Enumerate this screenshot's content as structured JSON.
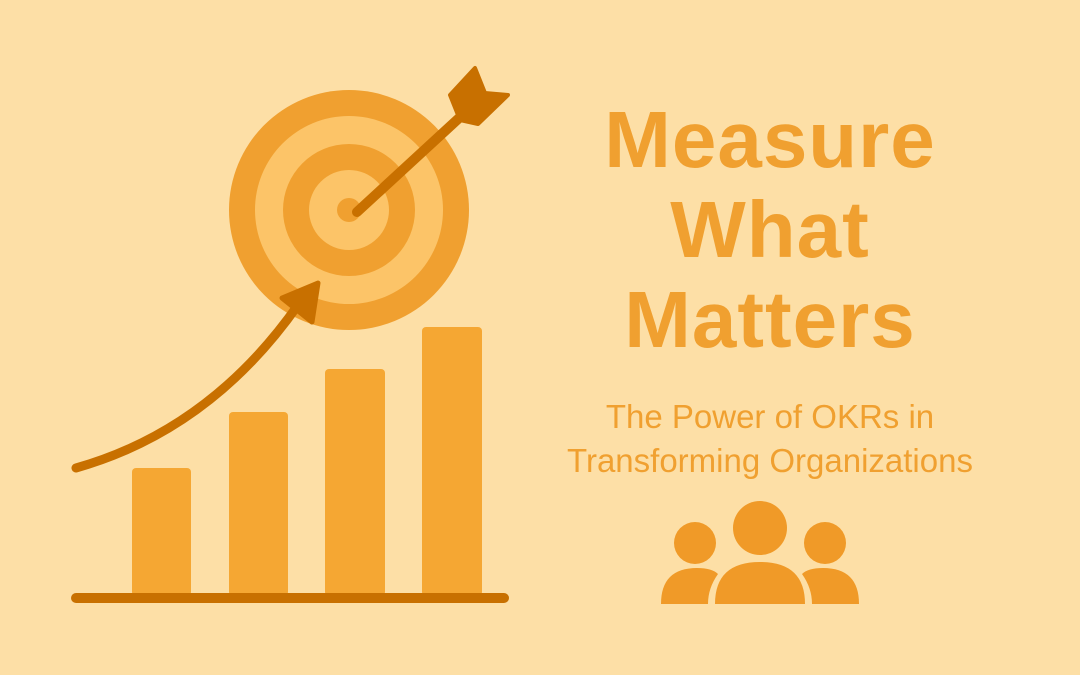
{
  "headline": {
    "line1": "Measure",
    "line2": "What",
    "line3": "Matters"
  },
  "subtitle": {
    "line1": "The Power of OKRs in",
    "line2": "Transforming Organizations"
  },
  "icons": [
    "target-icon",
    "arrow-icon",
    "growth-arrow-icon",
    "bar-chart-icon",
    "people-icon"
  ],
  "colors": {
    "background": "#FDDFA6",
    "accent": "#F0A030",
    "light": "#FCC468",
    "dark": "#C87000",
    "bar": "#F5A733"
  }
}
